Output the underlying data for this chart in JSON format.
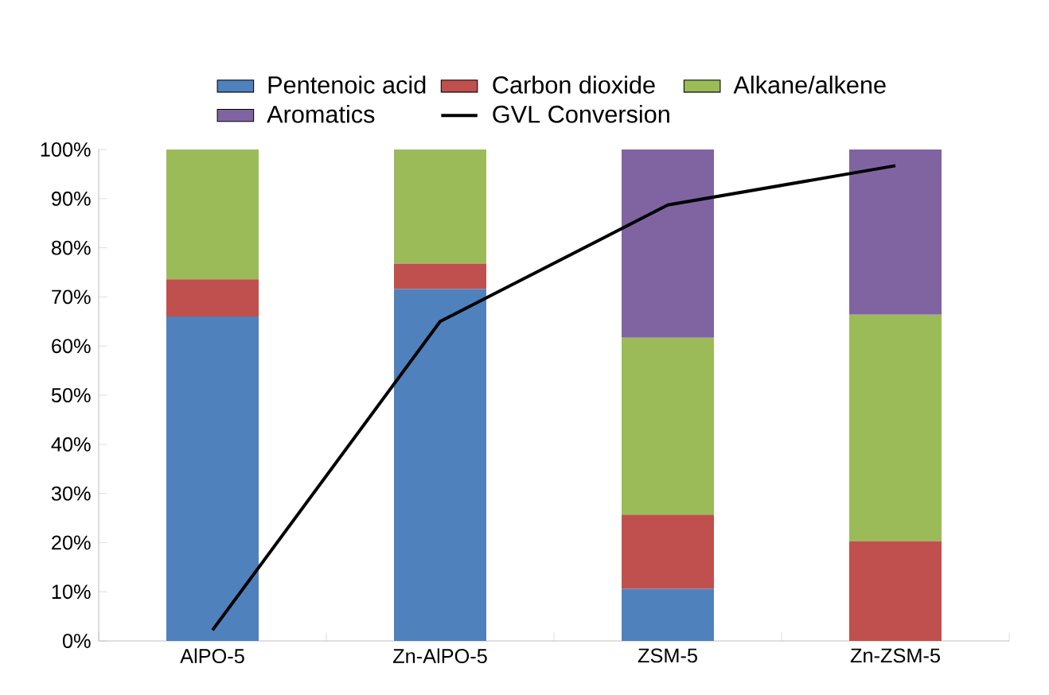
{
  "chart_data": {
    "type": "bar",
    "stacked": true,
    "legend": "top",
    "categories": [
      "AlPO-5",
      "Zn-AlPO-5",
      "ZSM-5",
      "Zn-ZSM-5"
    ],
    "series": [
      {
        "name": "Pentenoic acid",
        "color": "#4f81bd",
        "values": [
          66.0,
          71.6,
          10.6,
          0
        ]
      },
      {
        "name": "Carbon dioxide",
        "color": "#c0504d",
        "values": [
          7.6,
          5.2,
          15.1,
          20.3
        ]
      },
      {
        "name": "Alkane/alkene",
        "color": "#9bbb59",
        "values": [
          26.4,
          23.2,
          36.0,
          46.1
        ]
      },
      {
        "name": "Aromatics",
        "color": "#8064a2",
        "values": [
          0,
          0,
          38.3,
          33.6
        ]
      },
      {
        "name": "GVL Conversion",
        "type": "line",
        "color": "#000000",
        "values": [
          2.2,
          65.0,
          88.7,
          96.7
        ]
      }
    ],
    "ylim": [
      0,
      100
    ],
    "yticks": [
      {
        "value": 0,
        "label": "0%"
      },
      {
        "value": 10,
        "label": "10%"
      },
      {
        "value": 20,
        "label": "20%"
      },
      {
        "value": 30,
        "label": "30%"
      },
      {
        "value": 40,
        "label": "40%"
      },
      {
        "value": 50,
        "label": "50%"
      },
      {
        "value": 60,
        "label": "60%"
      },
      {
        "value": 70,
        "label": "70%"
      },
      {
        "value": 80,
        "label": "80%"
      },
      {
        "value": 90,
        "label": "90%"
      },
      {
        "value": 100,
        "label": "100%"
      }
    ]
  }
}
